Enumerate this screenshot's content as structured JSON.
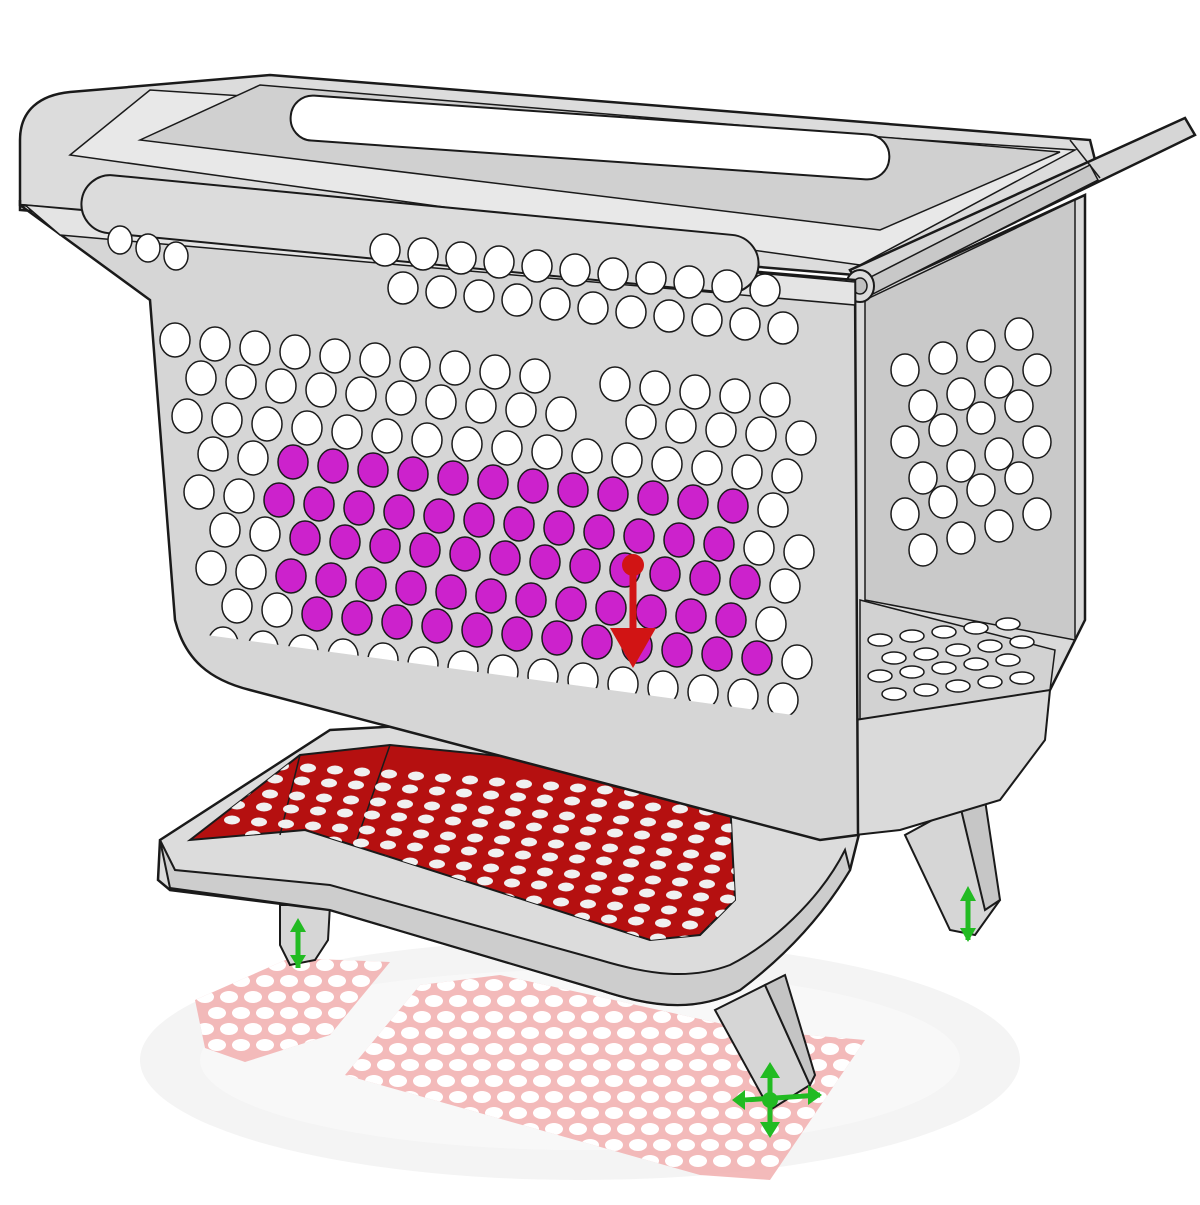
{
  "viewport": {
    "model": "shopping-cart",
    "view": "isometric",
    "background_color": "#ffffff"
  },
  "colors": {
    "body_fill": "#d6d6d6",
    "body_fill_light": "#e4e4e4",
    "body_fill_dark": "#c4c4c4",
    "edge_stroke": "#1a1a1a",
    "hole_fill": "#ffffff",
    "selected_face": "#b51010",
    "highlight_face": "#cc22cc",
    "shadow_fill": "#f2b3b3",
    "floor_reflection": "#f3f3f3",
    "force_arrow": "#d11414",
    "fixture_glyph": "#22bb22"
  },
  "annotations": {
    "force_load": {
      "icon": "force-arrow-icon",
      "direction": "down"
    },
    "fixtures": [
      {
        "icon": "fixture-arrow-icon",
        "location": "rear-left-wheel"
      },
      {
        "icon": "fixture-arrow-icon",
        "location": "rear-right-wheel"
      },
      {
        "icon": "fixture-triad-icon",
        "location": "front-wheel"
      }
    ]
  },
  "features": {
    "selected_face": "lower-tray-face",
    "highlighted_face": "basket-back-wall-holes"
  }
}
